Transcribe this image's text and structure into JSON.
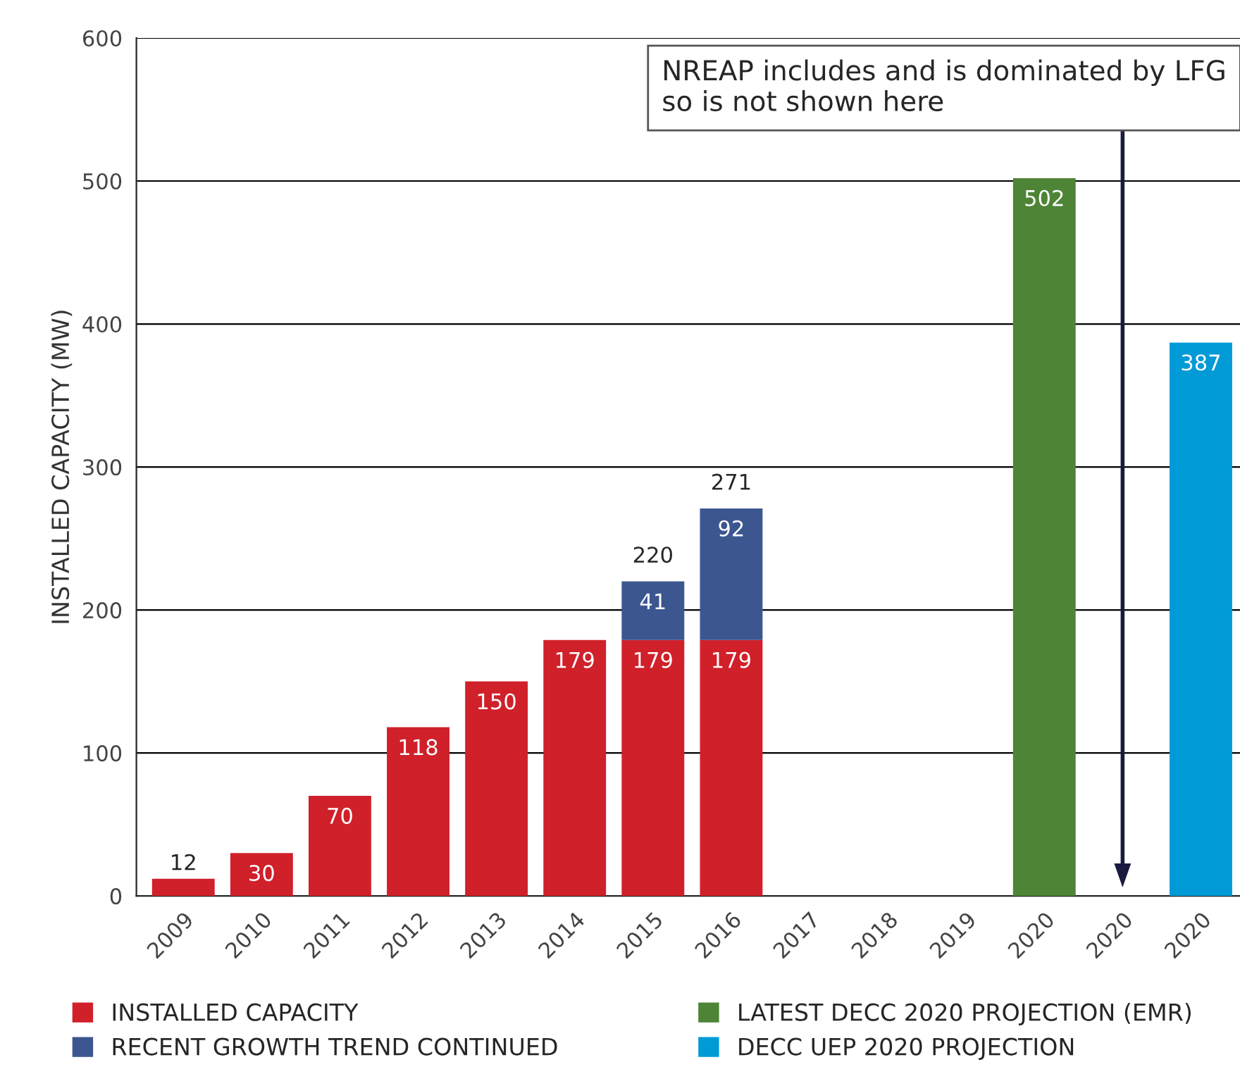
{
  "chart_data": {
    "type": "bar",
    "stacked": true,
    "ylabel": "INSTALLED CAPACITY (MW)",
    "categories": [
      "2009",
      "2010",
      "2011",
      "2012",
      "2013",
      "2014",
      "2015",
      "2016",
      "2017",
      "2018",
      "2019",
      "2020",
      "2020",
      "2020"
    ],
    "series": [
      {
        "name": "INSTALLED CAPACITY",
        "color": "#d0202a",
        "values": [
          12,
          30,
          70,
          118,
          150,
          179,
          179,
          179,
          null,
          null,
          null,
          null,
          null,
          null
        ]
      },
      {
        "name": "RECENT GROWTH TREND CONTINUED",
        "color": "#3c5690",
        "values": [
          null,
          null,
          null,
          null,
          null,
          null,
          41,
          92,
          null,
          null,
          null,
          null,
          null,
          null
        ]
      },
      {
        "name": "LATEST DECC 2020 PROJECTION (EMR)",
        "color": "#4e8436",
        "values": [
          null,
          null,
          null,
          null,
          null,
          null,
          null,
          null,
          null,
          null,
          null,
          502,
          null,
          null
        ]
      },
      {
        "name": "DECC UEP 2020 PROJECTION",
        "color": "#009ad6",
        "values": [
          null,
          null,
          null,
          null,
          null,
          null,
          null,
          null,
          null,
          null,
          null,
          null,
          null,
          387
        ]
      }
    ],
    "totals": [
      null,
      null,
      null,
      null,
      null,
      null,
      "220",
      "271",
      null,
      null,
      null,
      null,
      null,
      null
    ],
    "data_labels": true,
    "ylim": [
      0,
      600
    ],
    "yticks": [
      0,
      100,
      200,
      300,
      400,
      500,
      600
    ],
    "grid": "y",
    "legend": "bottom",
    "annotations": [
      "NREAP includes and is dominated by LFG so is not shown here"
    ]
  }
}
